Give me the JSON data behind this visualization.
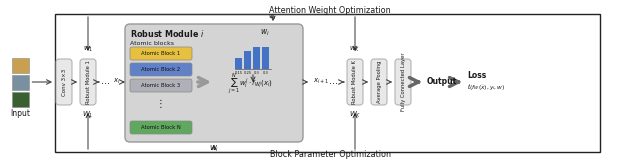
{
  "bg_color": "#ffffff",
  "box_color": "#e8e8e8",
  "box_edge": "#aaaaaa",
  "rm_bg": "#d4d4d4",
  "rm_edge": "#999999",
  "atomic1_color": "#e8c040",
  "atomic2_color": "#6080c8",
  "atomic3_color": "#b0b0b8",
  "atomic4_color": "#60a860",
  "bar_color": "#4472c4",
  "text_color": "#1a1a1a",
  "arrow_color": "#444444",
  "outer_rect_color": "#222222",
  "top_label": "Attention Weight Optimization",
  "bottom_label": "Block Parameter Optimization",
  "input_label": "Input",
  "conv_label": "Conv 3×3",
  "robust1_label": "Robust Module 1",
  "robustK_label": "Robust Module K",
  "avg_pool_label": "Average Pooling",
  "fc_label": "Fully Connected Layer",
  "atomic_title": "Robust Module i",
  "atomic_label": "Atomic blocks",
  "atomic_blocks": [
    "Atomic Block 1",
    "Atomic Block 2",
    "Atomic Block 3",
    "Atomic Block N"
  ],
  "bar_weights": [
    0.15,
    0.25,
    0.3,
    0.3
  ],
  "bar_label_strs": [
    "0.15",
    "0.25",
    "0.3",
    "0.3"
  ],
  "img_colors_top": [
    "#c8a868",
    "#a07848",
    "#b89060"
  ],
  "img_colors_mid": [
    "#907858",
    "#786048",
    "#887060"
  ],
  "img_colors_bot": [
    "#405838",
    "#385030",
    "#487840"
  ]
}
